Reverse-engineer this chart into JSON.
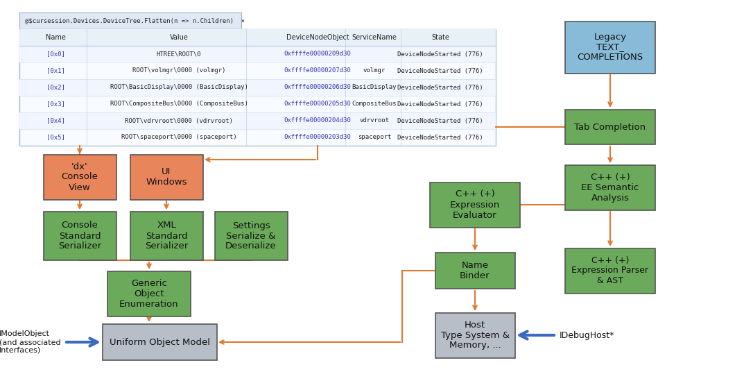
{
  "bg_color": "#ffffff",
  "orange": "#e07830",
  "green": "#6aaa5a",
  "orange_box": "#e8855a",
  "blue_box": "#88bbd8",
  "gray_box": "#b8bec8",
  "blue_arrow": "#3a6abf",
  "table_rows": [
    [
      "[0x0]",
      "HTREE\\ROOT\\0",
      "0xffffe00000209d30",
      "",
      "DeviceNodeStarted (776)"
    ],
    [
      "[0x1]",
      "ROOT\\volmgr\\0000 (volmgr)",
      "0xffffe00000207d30",
      "volmgr",
      "DeviceNodeStarted (776)"
    ],
    [
      "[0x2]",
      "ROOT\\BasicDisplay\\0000 (BasicDisplay)",
      "0xffffe00000206d30",
      "BasicDisplay",
      "DeviceNodeStarted (776)"
    ],
    [
      "[0x3]",
      "ROOT\\CompositeBus\\0000 (CompositeBus)",
      "0xffffe00000205d30",
      "CompositeBus",
      "DeviceNodeStarted (776)"
    ],
    [
      "[0x4]",
      "ROOT\\vdrvroot\\0000 (vdrvroot)",
      "0xffffe00000204d30",
      "vdrvroot",
      "DeviceNodeStarted (776)"
    ],
    [
      "[0x5]",
      "ROOT\\spaceport\\0000 (spaceport)",
      "0xffffe00000203d30",
      "spaceport",
      "DeviceNodeStarted (776)"
    ]
  ]
}
